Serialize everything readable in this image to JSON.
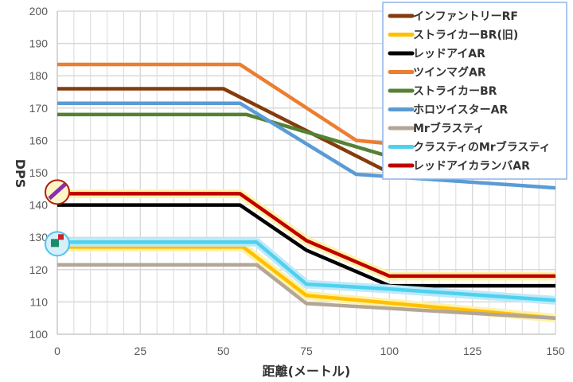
{
  "chart_data": {
    "type": "line",
    "title": "",
    "xlabel": "距離(メートル)",
    "ylabel": "DPS",
    "xlim": [
      0,
      150
    ],
    "ylim": [
      100,
      200
    ],
    "xticks": [
      0,
      25,
      50,
      75,
      100,
      125,
      150
    ],
    "yticks": [
      100,
      110,
      120,
      130,
      140,
      150,
      160,
      170,
      180,
      190,
      200
    ],
    "grid": true,
    "legend_position": "top-right",
    "series": [
      {
        "name": "インファントリーRF",
        "color": "#843C0C",
        "points": [
          [
            0,
            176
          ],
          [
            50,
            176
          ],
          [
            100,
            150
          ],
          [
            150,
            150
          ]
        ]
      },
      {
        "name": "ストライカーBR(旧)",
        "color": "#FFC000",
        "glow": "#fff2a8",
        "points": [
          [
            0,
            127
          ],
          [
            56,
            127
          ],
          [
            75,
            112
          ],
          [
            150,
            105
          ]
        ]
      },
      {
        "name": "レッドアイAR",
        "color": "#000000",
        "points": [
          [
            0,
            140
          ],
          [
            55,
            140
          ],
          [
            75,
            126
          ],
          [
            100,
            115
          ],
          [
            150,
            115
          ]
        ]
      },
      {
        "name": "ツインマグAR",
        "color": "#ED7D31",
        "points": [
          [
            0,
            183.5
          ],
          [
            55,
            183.5
          ],
          [
            90,
            160
          ],
          [
            100,
            159
          ],
          [
            150,
            159
          ]
        ]
      },
      {
        "name": "ストライカーBR",
        "color": "#548235",
        "points": [
          [
            0,
            168
          ],
          [
            57,
            168
          ],
          [
            100,
            155
          ],
          [
            150,
            151
          ]
        ]
      },
      {
        "name": "ホロツイスターAR",
        "color": "#5B9BD5",
        "points": [
          [
            0,
            171.5
          ],
          [
            55,
            171.5
          ],
          [
            90,
            149.5
          ],
          [
            150,
            145.3
          ]
        ]
      },
      {
        "name": "Mrブラスティ",
        "color": "#B4A596",
        "points": [
          [
            0,
            121.5
          ],
          [
            60,
            121.5
          ],
          [
            75,
            109.5
          ],
          [
            150,
            105
          ]
        ]
      },
      {
        "name": "クラスティのMrブラスティ",
        "color": "#4FD1EE",
        "glow": "#bde9fb",
        "points": [
          [
            0,
            128.5
          ],
          [
            60,
            128.5
          ],
          [
            75,
            115.5
          ],
          [
            100,
            114
          ],
          [
            150,
            110.5
          ]
        ]
      },
      {
        "name": "レッドアイカランバAR",
        "color": "#C00000",
        "glow": "#fff2a8",
        "points": [
          [
            0,
            143.5
          ],
          [
            55,
            143.5
          ],
          [
            75,
            129
          ],
          [
            100,
            118
          ],
          [
            150,
            118
          ]
        ]
      }
    ],
    "markers": [
      {
        "series": "レッドアイカランバAR",
        "icon": "purple-gun-icon",
        "x": 0,
        "y": 144
      },
      {
        "series": "クラスティのMrブラスティ",
        "icon": "green-blaster-icon",
        "x": 0,
        "y": 128
      }
    ]
  }
}
